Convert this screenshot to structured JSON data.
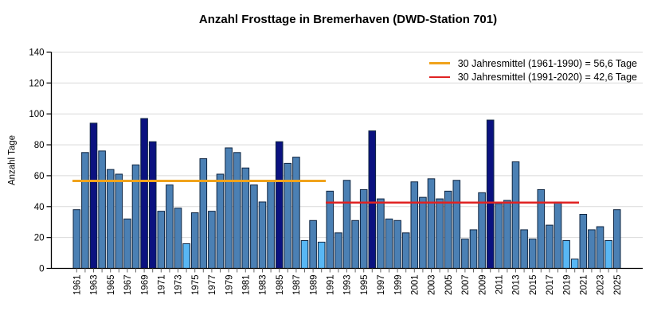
{
  "title": "Anzahl Frosttage in Bremerhaven (DWD-Station 701)",
  "legend": [
    {
      "label": "30 Jahresmittel (1961-1990) = 56,6 Tage",
      "color": "#f0a31c"
    },
    {
      "label": "30 Jahresmittel (1991-2020) = 42,6 Tage",
      "color": "#e02222"
    }
  ],
  "chart_data": {
    "type": "bar",
    "title": "Anzahl Frosttage in Bremerhaven (DWD-Station 701)",
    "xlabel": "",
    "ylabel": "Anzahl Tage",
    "ylim": [
      0,
      140
    ],
    "yticks": [
      0,
      20,
      40,
      60,
      80,
      100,
      120,
      140
    ],
    "xtick_label_step": 2,
    "grid": "horizontal",
    "legend_position": "top-right",
    "categories": [
      1961,
      1962,
      1963,
      1964,
      1965,
      1966,
      1967,
      1968,
      1969,
      1970,
      1971,
      1972,
      1973,
      1974,
      1975,
      1976,
      1977,
      1978,
      1979,
      1980,
      1981,
      1982,
      1983,
      1984,
      1985,
      1986,
      1987,
      1988,
      1989,
      1990,
      1991,
      1992,
      1993,
      1994,
      1995,
      1996,
      1997,
      1998,
      1999,
      2000,
      2001,
      2002,
      2003,
      2004,
      2005,
      2006,
      2007,
      2008,
      2009,
      2010,
      2011,
      2012,
      2013,
      2014,
      2015,
      2016,
      2017,
      2018,
      2019,
      2020,
      2021,
      2022,
      2023,
      2024,
      2025
    ],
    "values": [
      38,
      75,
      94,
      76,
      64,
      61,
      32,
      67,
      97,
      82,
      37,
      54,
      39,
      16,
      36,
      71,
      37,
      61,
      78,
      75,
      65,
      54,
      43,
      57,
      82,
      68,
      72,
      18,
      31,
      17,
      50,
      23,
      57,
      31,
      51,
      89,
      45,
      32,
      31,
      23,
      56,
      46,
      58,
      45,
      50,
      57,
      19,
      25,
      49,
      96,
      42,
      44,
      69,
      25,
      19,
      51,
      28,
      43,
      18,
      6,
      35,
      25,
      27,
      18,
      38
    ],
    "dark_years": [
      1963,
      1969,
      1970,
      1985,
      1996,
      2010
    ],
    "light_years": [
      1974,
      1988,
      1990,
      2019,
      2020,
      2024
    ],
    "bar_color_default": "#4b80b4",
    "bar_color_dark": "#0b1280",
    "bar_color_light": "#58b7f4",
    "bar_stroke": "#0e2440",
    "gridline_color": "#d9d9d9",
    "axis_color": "#000000",
    "reference_lines": [
      {
        "name": "mean-1961-1990",
        "value": 56.6,
        "color": "#f0a31c",
        "from_year": 1961,
        "to_year": 1990
      },
      {
        "name": "mean-1991-2020",
        "value": 42.6,
        "color": "#e02222",
        "from_year": 1991,
        "to_year": 2020
      }
    ]
  }
}
